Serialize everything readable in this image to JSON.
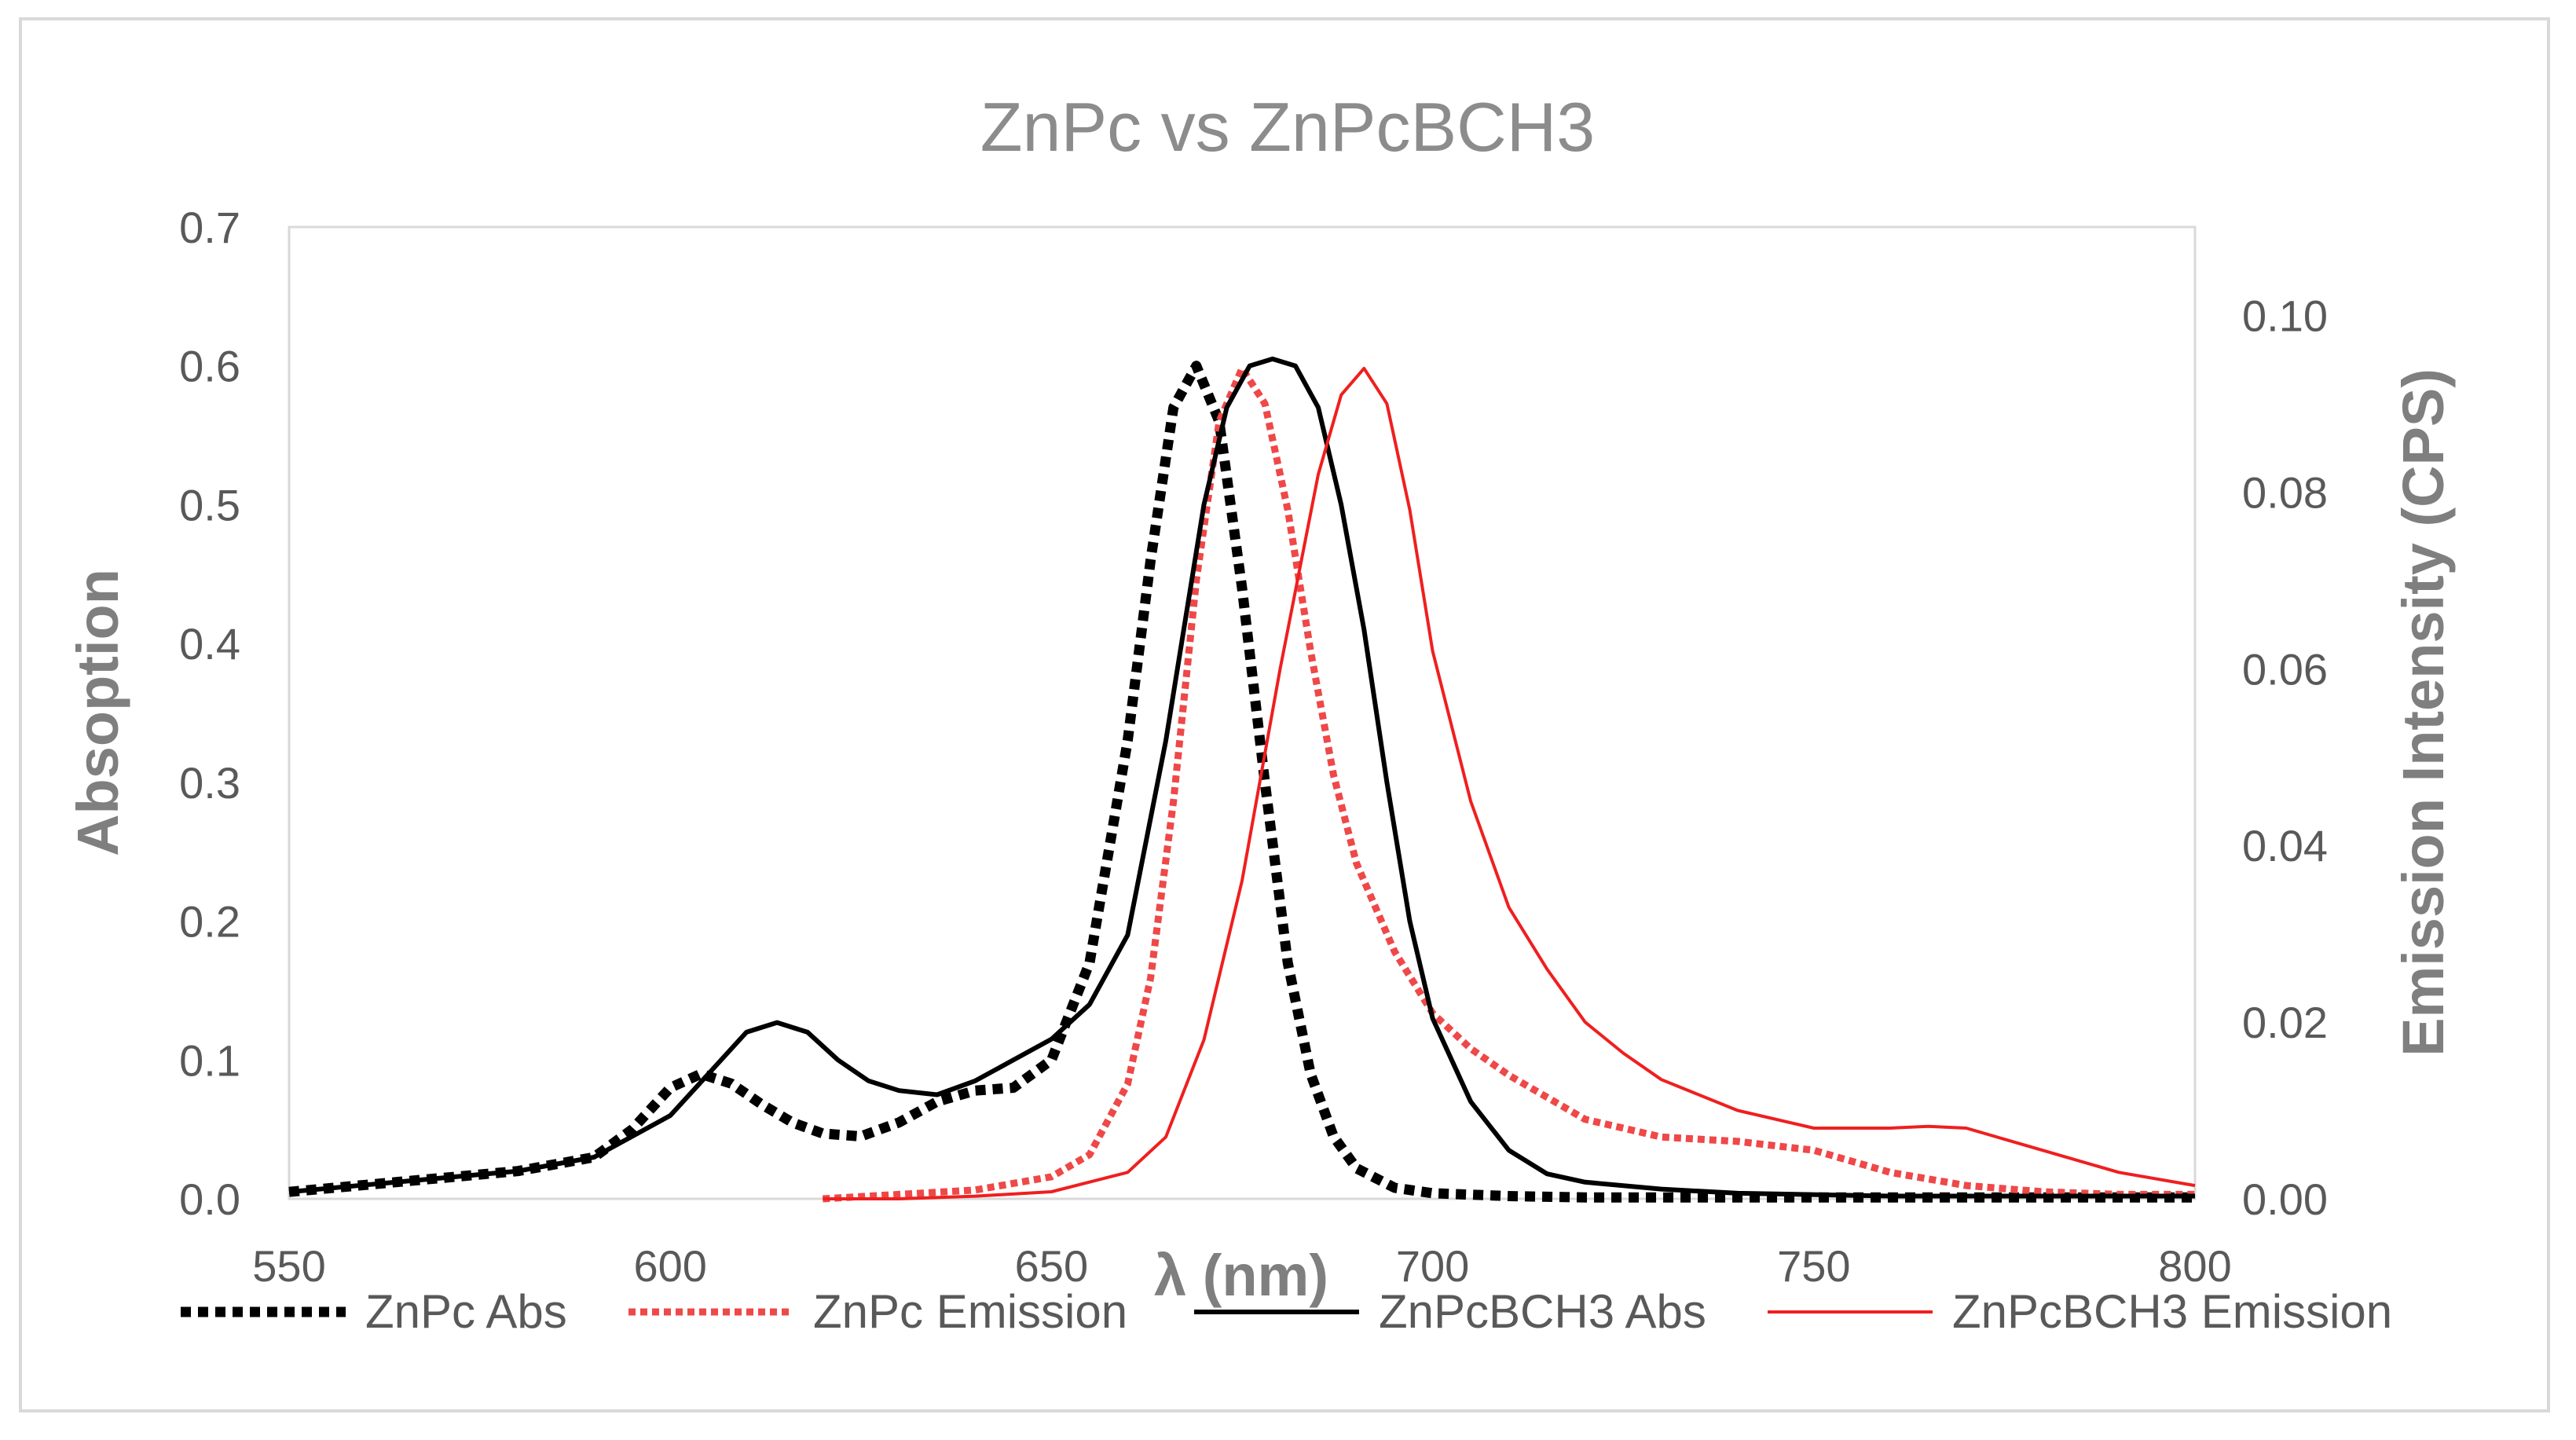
{
  "chart_data": {
    "type": "line",
    "title": "ZnPc vs ZnPcBCH3",
    "xlabel": "λ (nm)",
    "ylabel": "Absoption",
    "y2label": "Emission Intensity (CPS)",
    "xlim": [
      550,
      800
    ],
    "ylim": [
      0,
      0.7
    ],
    "y2lim": [
      0,
      0.11
    ],
    "xticks": [
      "550",
      "600",
      "650",
      "700",
      "750",
      "800"
    ],
    "yticks": [
      "0.0",
      "0.1",
      "0.2",
      "0.3",
      "0.4",
      "0.5",
      "0.6",
      "0.7"
    ],
    "y2ticks": [
      "0.00",
      "0.02",
      "0.04",
      "0.06",
      "0.08",
      "0.10"
    ],
    "legend_position": "bottom",
    "series": [
      {
        "name": "ZnPc Abs",
        "axis": "left",
        "color": "#000000",
        "style": "dotted",
        "x": [
          550,
          560,
          570,
          580,
          590,
          595,
          600,
          604,
          608,
          612,
          616,
          620,
          625,
          630,
          635,
          640,
          645,
          650,
          655,
          660,
          663,
          666,
          669,
          672,
          675,
          678,
          681,
          684,
          687,
          690,
          695,
          700,
          710,
          720,
          740,
          760,
          780,
          800
        ],
        "y": [
          0.005,
          0.01,
          0.015,
          0.02,
          0.03,
          0.05,
          0.08,
          0.09,
          0.083,
          0.068,
          0.055,
          0.047,
          0.045,
          0.055,
          0.07,
          0.078,
          0.08,
          0.1,
          0.17,
          0.33,
          0.46,
          0.57,
          0.6,
          0.56,
          0.44,
          0.3,
          0.17,
          0.09,
          0.045,
          0.022,
          0.008,
          0.004,
          0.002,
          0.001,
          0.001,
          0.001,
          0.001,
          0.001
        ]
      },
      {
        "name": "ZnPc Emission",
        "axis": "right",
        "color": "#ef4848",
        "style": "dotted",
        "x": [
          620,
          630,
          640,
          650,
          655,
          660,
          663,
          666,
          669,
          672,
          675,
          678,
          681,
          684,
          687,
          690,
          695,
          700,
          705,
          710,
          720,
          730,
          740,
          750,
          760,
          770,
          780,
          790,
          800
        ],
        "y": [
          0.0,
          0.0005,
          0.001,
          0.0025,
          0.005,
          0.013,
          0.025,
          0.045,
          0.07,
          0.088,
          0.094,
          0.09,
          0.078,
          0.062,
          0.048,
          0.038,
          0.028,
          0.021,
          0.017,
          0.014,
          0.009,
          0.007,
          0.0065,
          0.0055,
          0.003,
          0.0015,
          0.0008,
          0.0005,
          0.0005
        ]
      },
      {
        "name": "ZnPcBCH3 Abs",
        "axis": "left",
        "color": "#000000",
        "style": "solid",
        "x": [
          550,
          560,
          570,
          580,
          590,
          595,
          600,
          605,
          610,
          614,
          618,
          622,
          626,
          630,
          635,
          640,
          645,
          650,
          655,
          660,
          665,
          670,
          673,
          676,
          679,
          682,
          685,
          688,
          691,
          694,
          697,
          700,
          705,
          710,
          715,
          720,
          730,
          740,
          760,
          780,
          800
        ],
        "y": [
          0.005,
          0.01,
          0.015,
          0.02,
          0.03,
          0.045,
          0.06,
          0.09,
          0.12,
          0.127,
          0.12,
          0.1,
          0.085,
          0.078,
          0.075,
          0.085,
          0.1,
          0.115,
          0.14,
          0.19,
          0.33,
          0.5,
          0.57,
          0.6,
          0.605,
          0.6,
          0.57,
          0.5,
          0.41,
          0.3,
          0.2,
          0.13,
          0.07,
          0.035,
          0.018,
          0.012,
          0.007,
          0.004,
          0.002,
          0.002,
          0.002
        ]
      },
      {
        "name": "ZnPcBCH3 Emission",
        "axis": "right",
        "color": "#ef1f1f",
        "style": "solid",
        "x": [
          620,
          630,
          640,
          650,
          660,
          665,
          670,
          675,
          680,
          685,
          688,
          691,
          694,
          697,
          700,
          705,
          710,
          715,
          720,
          725,
          730,
          740,
          750,
          760,
          765,
          770,
          780,
          790,
          800
        ],
        "y": [
          0.0,
          0.0,
          0.0003,
          0.0008,
          0.003,
          0.007,
          0.018,
          0.036,
          0.06,
          0.082,
          0.091,
          0.094,
          0.09,
          0.078,
          0.062,
          0.045,
          0.033,
          0.026,
          0.02,
          0.0165,
          0.0135,
          0.01,
          0.008,
          0.008,
          0.0082,
          0.008,
          0.0055,
          0.003,
          0.0015
        ]
      }
    ]
  }
}
